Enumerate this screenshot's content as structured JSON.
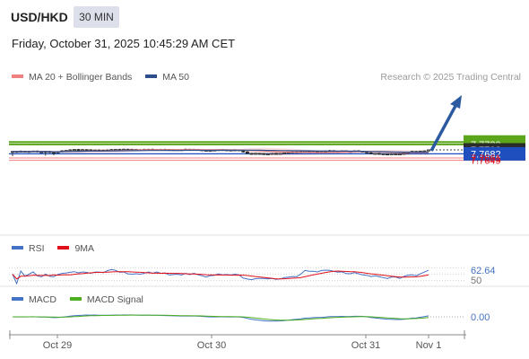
{
  "header": {
    "symbol": "USD/HKD",
    "timeframe": "30 MIN",
    "datetime": "Friday, October 31, 2025 10:45:29 AM CET",
    "credit": "Research © 2025 Trading Central"
  },
  "legend": {
    "main": [
      {
        "label": "MA 20 + Bollinger Bands",
        "color": "#f08080"
      },
      {
        "label": "MA 50",
        "color": "#2c4f8c"
      }
    ],
    "rsi": [
      {
        "label": "RSI",
        "color": "#4472c4"
      },
      {
        "label": "9MA",
        "color": "#e0101a"
      }
    ],
    "macd": [
      {
        "label": "MACD",
        "color": "#4472c4"
      },
      {
        "label": "MACD Signal",
        "color": "#4caf20"
      }
    ]
  },
  "colors": {
    "resistance": "#5aa51a",
    "support_pivot": "#1f4fbf",
    "support": "#f08080",
    "last_price_tag": "#2b2b2b",
    "arrow": "#2c5aa0"
  },
  "chart_data": [
    {
      "type": "candlestick",
      "panel": "price",
      "ylim": [
        7.764,
        7.775
      ],
      "x_ticks": [
        "Oct 29",
        "Oct 30",
        "Oct 31",
        "Nov 1"
      ],
      "levels": [
        {
          "value": "7.7742",
          "kind": "resistance"
        },
        {
          "value": "7.7730",
          "kind": "resistance"
        },
        {
          "value": "7.7702",
          "kind": "last"
        },
        {
          "value": "7.7682",
          "kind": "pivot"
        },
        {
          "value": "7.7661",
          "kind": "support"
        },
        {
          "value": "7.7649",
          "kind": "support"
        }
      ],
      "close": [
        7.7694,
        7.7693,
        7.7695,
        7.7693,
        7.7694,
        7.7696,
        7.7692,
        7.769,
        7.7694,
        7.7689,
        7.7687,
        7.7693,
        7.7697,
        7.7699,
        7.7702,
        7.7704,
        7.7701,
        7.7703,
        7.7702,
        7.77,
        7.7701,
        7.7699,
        7.77,
        7.7701,
        7.7703,
        7.7704,
        7.7702,
        7.7705,
        7.7703,
        7.7704,
        7.7702,
        7.7703,
        7.7704,
        7.7705,
        7.7703,
        7.7704,
        7.7702,
        7.7704,
        7.7701,
        7.7703,
        7.7702,
        7.7703,
        7.7705,
        7.7703,
        7.7704,
        7.7702,
        7.77,
        7.7697,
        7.7699,
        7.7701,
        7.7703,
        7.7702,
        7.77,
        7.7701,
        7.7702,
        7.7701,
        7.7692,
        7.7684,
        7.7682,
        7.7684,
        7.7683,
        7.768,
        7.7681,
        7.7684,
        7.7683,
        7.7684,
        7.7687,
        7.7689,
        7.7692,
        7.769,
        7.7693,
        7.7696,
        7.7692,
        7.7694,
        7.7691,
        7.7693,
        7.7696,
        7.7698,
        7.7694,
        7.7692,
        7.7697,
        7.7692,
        7.7694,
        7.7697,
        7.7695,
        7.7693,
        7.7687,
        7.7683,
        7.7684,
        7.7682,
        7.7681,
        7.7679,
        7.7682,
        7.768,
        7.7681,
        7.7684,
        7.769,
        7.7694,
        7.7688,
        7.7695,
        7.7697,
        7.7702
      ]
    },
    {
      "type": "line",
      "panel": "RSI",
      "last_value": "62.64",
      "ref_value": "50",
      "series": [
        {
          "name": "RSI"
        },
        {
          "name": "9MA"
        }
      ]
    },
    {
      "type": "line",
      "panel": "MACD",
      "last_value": "0.00",
      "series": [
        {
          "name": "MACD"
        },
        {
          "name": "MACD Signal"
        }
      ]
    }
  ]
}
